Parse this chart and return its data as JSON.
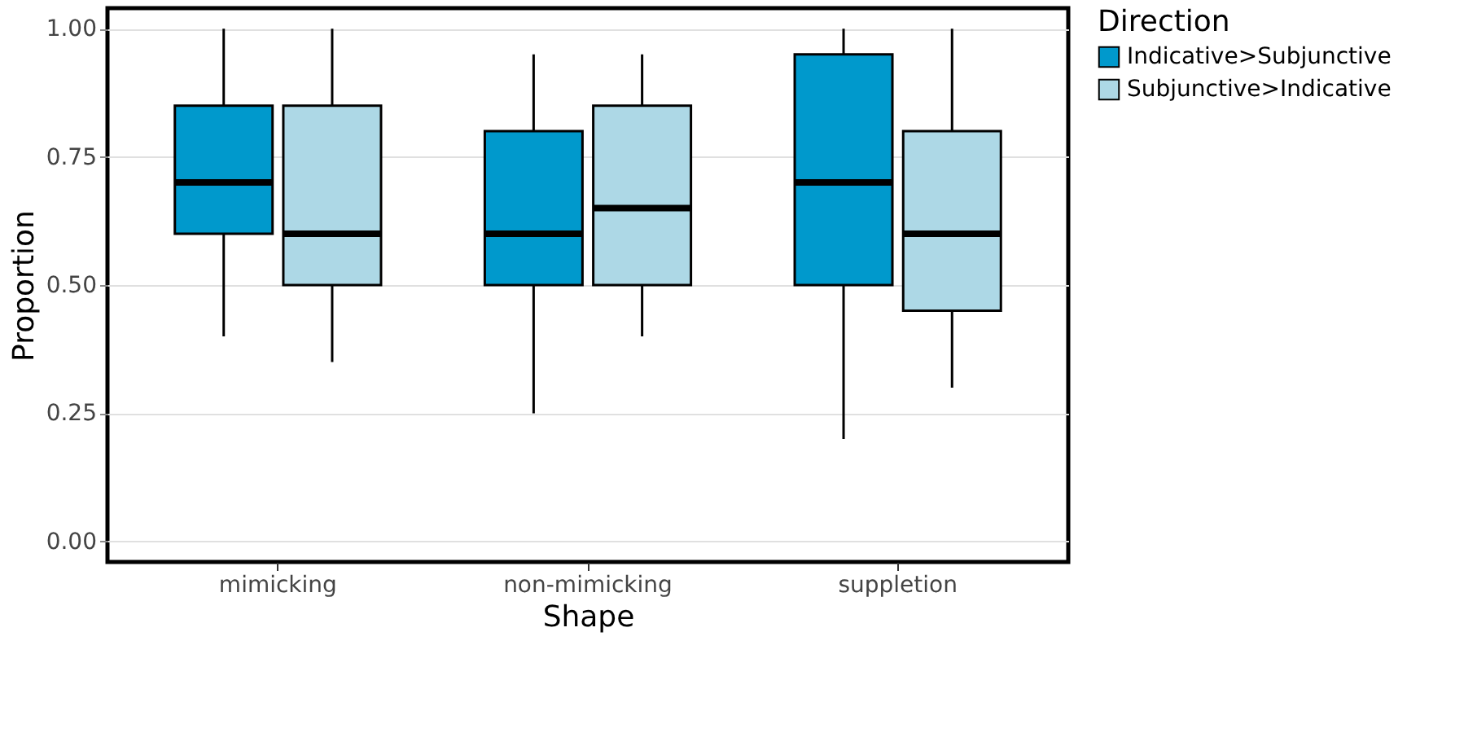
{
  "chart_data": {
    "type": "box",
    "xlabel": "Shape",
    "ylabel": "Proportion",
    "legend_title": "Direction",
    "categories": [
      "mimicking",
      "non-mimicking",
      "suppletion"
    ],
    "series": [
      {
        "name": "Indicative>Subjunctive",
        "color": "#0099cc",
        "boxes": [
          {
            "low": 0.4,
            "q1": 0.6,
            "median": 0.7,
            "q3": 0.85,
            "high": 1.0
          },
          {
            "low": 0.25,
            "q1": 0.5,
            "median": 0.6,
            "q3": 0.8,
            "high": 0.95
          },
          {
            "low": 0.2,
            "q1": 0.5,
            "median": 0.7,
            "q3": 0.95,
            "high": 1.0
          }
        ]
      },
      {
        "name": "Subjunctive>Indicative",
        "color": "#add8e6",
        "boxes": [
          {
            "low": 0.35,
            "q1": 0.5,
            "median": 0.6,
            "q3": 0.85,
            "high": 1.0
          },
          {
            "low": 0.4,
            "q1": 0.5,
            "median": 0.65,
            "q3": 0.85,
            "high": 0.95
          },
          {
            "low": 0.3,
            "q1": 0.45,
            "median": 0.6,
            "q3": 0.8,
            "high": 1.0
          }
        ]
      }
    ],
    "ylim": [
      -0.04,
      1.04
    ],
    "yticks": [
      {
        "value": 0,
        "label": "0.00"
      },
      {
        "value": 0.25,
        "label": "0.25"
      },
      {
        "value": 0.5,
        "label": "0.50"
      },
      {
        "value": 0.75,
        "label": "0.75"
      },
      {
        "value": 1,
        "label": "1.00"
      }
    ],
    "grid": "y",
    "legend": "right"
  }
}
